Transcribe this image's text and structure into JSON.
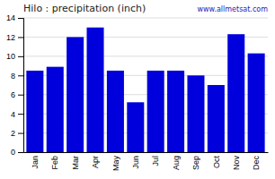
{
  "chart_data": {
    "type": "bar",
    "title": "Hilo : precipitation (inch)",
    "categories": [
      "Jan",
      "Feb",
      "Mar",
      "Apr",
      "May",
      "Jun",
      "Jul",
      "Aug",
      "Sep",
      "Oct",
      "Nov",
      "Dec"
    ],
    "values": [
      8.5,
      8.9,
      12.0,
      13.0,
      8.5,
      5.2,
      8.5,
      8.5,
      8.0,
      7.0,
      12.3,
      10.3
    ],
    "color": "#0000dd",
    "ylim": [
      0,
      14
    ],
    "yticks": [
      0,
      2,
      4,
      6,
      8,
      10,
      12,
      14
    ],
    "grid": true,
    "annotation": "www.allmetsat.com"
  }
}
